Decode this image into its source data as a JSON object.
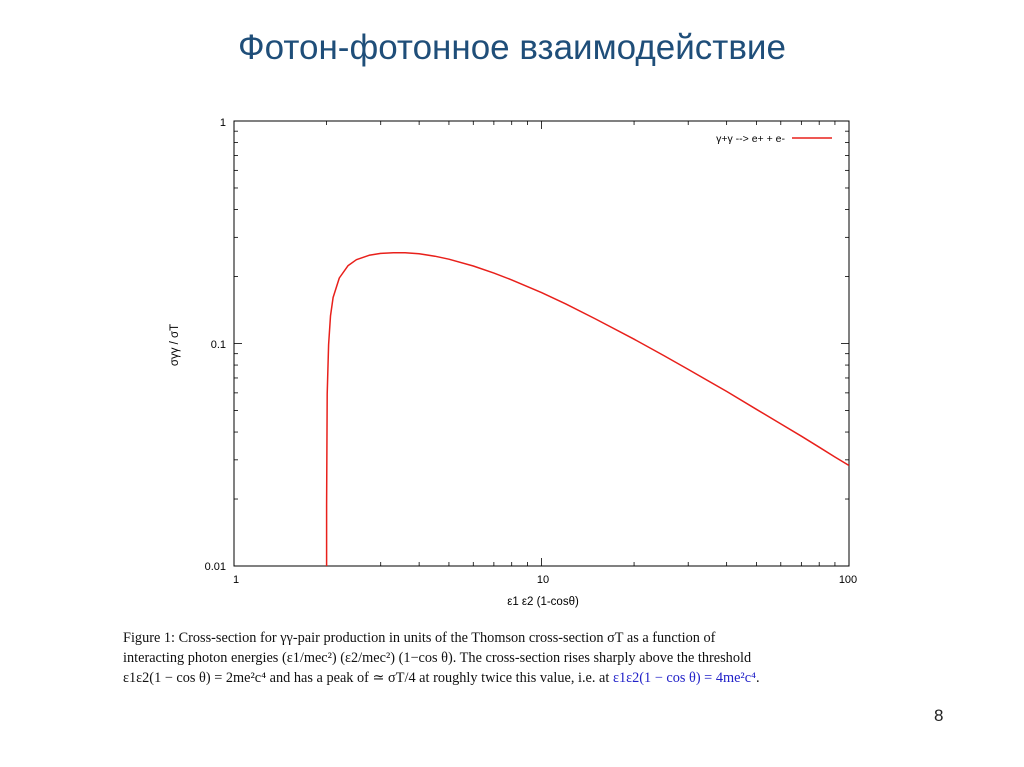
{
  "slide": {
    "title": "Фотон-фотонное взаимодействие",
    "page_number": "8"
  },
  "colors": {
    "title": "#1f4e79",
    "curve": "#e8201b",
    "caption_highlight": "#2121c8"
  },
  "chart_data": {
    "type": "line",
    "title": "",
    "xlabel": "ε1 ε2 (1-cosθ)",
    "ylabel": "σγγ / σT",
    "x_scale": "log",
    "y_scale": "log",
    "xlim": [
      1,
      100
    ],
    "ylim": [
      0.01,
      1
    ],
    "x_ticks": [
      {
        "value": 1,
        "label": "1"
      },
      {
        "value": 10,
        "label": "10"
      },
      {
        "value": 100,
        "label": "100"
      }
    ],
    "y_ticks": [
      {
        "value": 0.01,
        "label": "0.01"
      },
      {
        "value": 0.1,
        "label": "0.1"
      },
      {
        "value": 1,
        "label": "1"
      }
    ],
    "grid": false,
    "legend_position": "top-right",
    "series": [
      {
        "name": "γ+γ --> e+ + e-",
        "color": "#e8201b",
        "x": [
          2.0,
          2.001,
          2.01,
          2.03,
          2.06,
          2.1,
          2.2,
          2.35,
          2.5,
          2.75,
          3.0,
          3.3,
          3.6,
          4.0,
          4.5,
          5.0,
          6.0,
          7.0,
          8.0,
          10.0,
          12.0,
          15.0,
          20.0,
          25.0,
          30.0,
          40.0,
          50.0,
          60.0,
          70.0,
          80.0,
          90.0,
          100.0
        ],
        "y": [
          0.0,
          0.0188,
          0.0593,
          0.0988,
          0.133,
          0.161,
          0.197,
          0.224,
          0.238,
          0.249,
          0.254,
          0.256,
          0.256,
          0.2533,
          0.2469,
          0.2393,
          0.2229,
          0.2072,
          0.1931,
          0.1693,
          0.1507,
          0.1289,
          0.1045,
          0.0882,
          0.0765,
          0.0609,
          0.0506,
          0.0435,
          0.0383,
          0.0342,
          0.0309,
          0.0283
        ]
      }
    ]
  },
  "caption": {
    "line1": "Figure 1:  Cross-section for γγ-pair production in units of the Thomson cross-section σT as a function of",
    "line2": "interacting photon energies (ε1/mec²) (ε2/mec²) (1−cos θ).  The cross-section rises sharply above the threshold",
    "line3_a": "ε1ε2(1 − cos θ) = 2me²c⁴ and has a peak of ≃ σT/4 at roughly twice this value, i.e. at ",
    "line3_b": "ε1ε2(1 − cos θ) = 4me²c⁴",
    "line3_c": "."
  }
}
